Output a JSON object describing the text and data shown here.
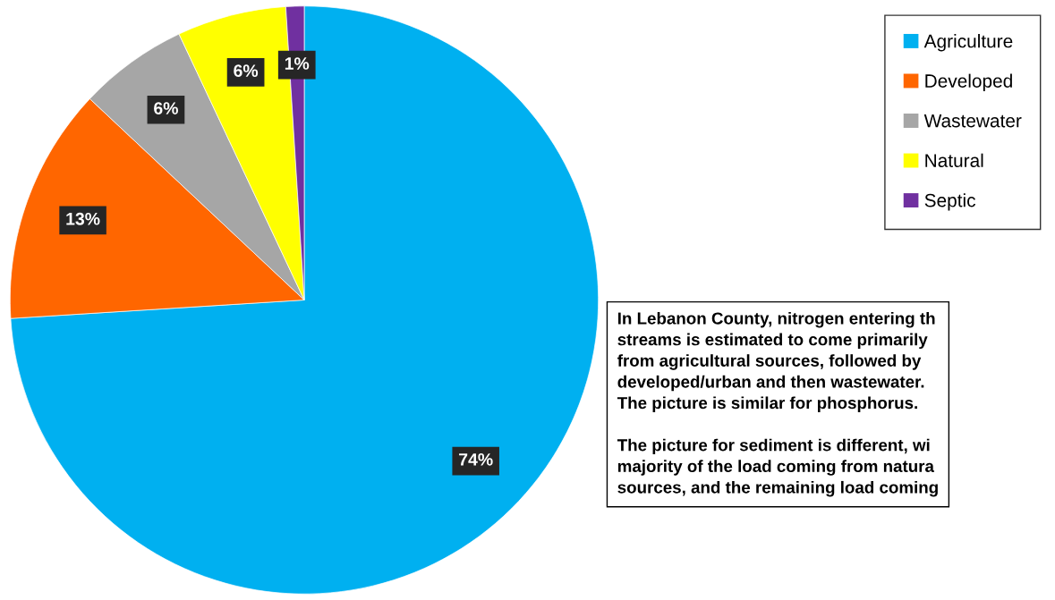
{
  "chart_data": {
    "type": "pie",
    "categories": [
      "Agriculture",
      "Developed",
      "Wastewater",
      "Natural",
      "Septic"
    ],
    "values": [
      74,
      13,
      6,
      6,
      1
    ],
    "value_labels": [
      "74%",
      "13%",
      "6%",
      "6%",
      "1%"
    ],
    "colors": [
      "#00b0f0",
      "#ff6600",
      "#a6a6a6",
      "#ffff00",
      "#7030a0"
    ],
    "legend": "top right",
    "annotations": [
      "In Lebanon County, nitrogen entering th\nstreams is estimated to come primarily\nfrom agricultural sources, followed by\ndeveloped/urban and then wastewater.\nThe picture is similar for phosphorus.\n\nThe picture for sediment is different, wi\nmajority of the load coming from natura\nsources, and the remaining load coming"
    ]
  }
}
